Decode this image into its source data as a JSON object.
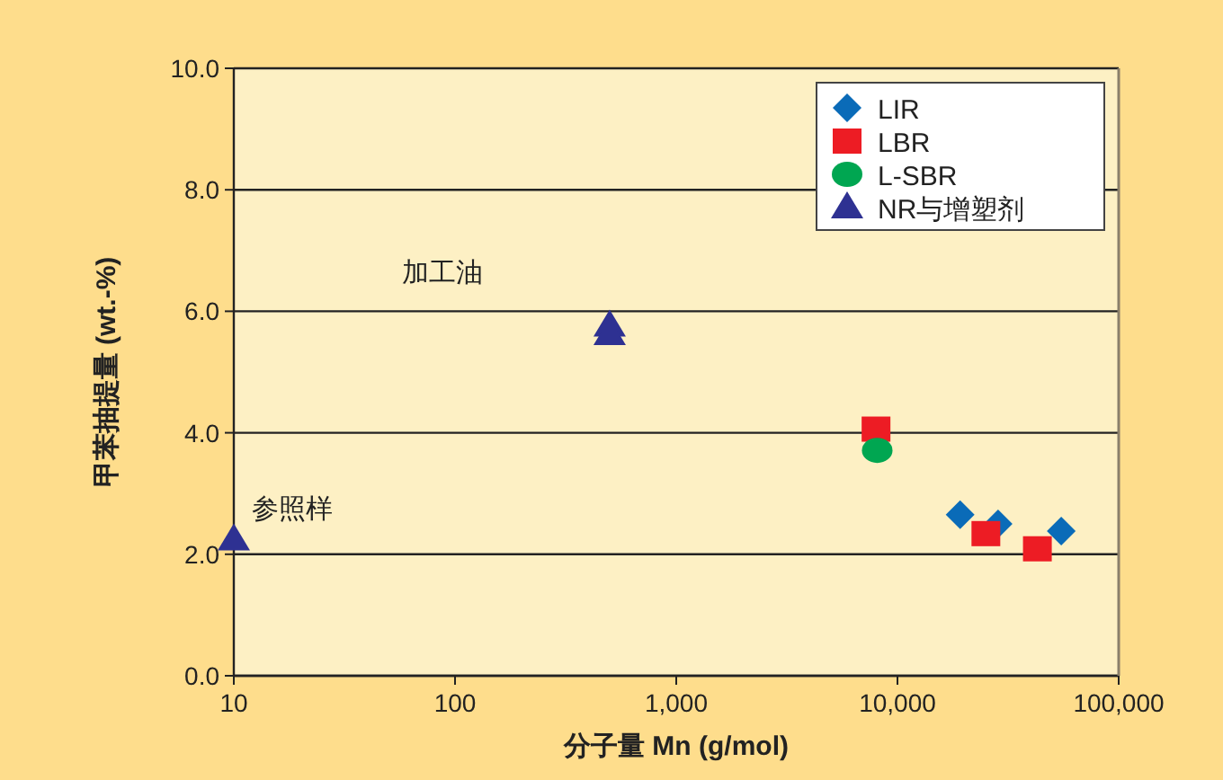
{
  "chart_data": {
    "type": "scatter",
    "xlabel": "分子量 Mn (g/mol)",
    "ylabel": "甲苯抽提量 (wt.-%)",
    "log": "x",
    "xlim": [
      10,
      100000
    ],
    "xticks": [
      10,
      100,
      {
        "value": 1000,
        "label": "1,000"
      },
      {
        "value": 10000,
        "label": "10,000"
      },
      {
        "value": 100000,
        "label": "100,000"
      }
    ],
    "ylim": [
      0,
      10
    ],
    "yticks": [
      {
        "value": 0,
        "label": "0.0"
      },
      {
        "value": 2,
        "label": "2.0"
      },
      {
        "value": 4,
        "label": "4.0"
      },
      {
        "value": 6,
        "label": "6.0"
      },
      {
        "value": 8,
        "label": "8.0"
      },
      {
        "value": 10,
        "label": "10.0"
      }
    ],
    "grid": "y",
    "legend": "top right",
    "series": [
      {
        "name": "LIR",
        "color": "#0a6bb8",
        "marker": "diamond",
        "x": [
          19200,
          28500,
          55000
        ],
        "values": [
          2.65,
          2.5,
          2.38
        ]
      },
      {
        "name": "LBR",
        "color": "#ed1c24",
        "marker": "square",
        "x": [
          8000,
          25100,
          42900
        ],
        "values": [
          4.06,
          2.34,
          2.09
        ]
      },
      {
        "name": "L-SBR",
        "color": "#00a651",
        "marker": "circle",
        "x": [
          8100
        ],
        "values": [
          3.71
        ]
      },
      {
        "name": "NR与增塑剂",
        "color": "#2e3192",
        "marker": "triangle",
        "x": [
          10,
          500,
          500
        ],
        "values": [
          2.24,
          5.76,
          5.62
        ]
      }
    ],
    "annotations": [
      "加工油",
      "参照样"
    ]
  }
}
